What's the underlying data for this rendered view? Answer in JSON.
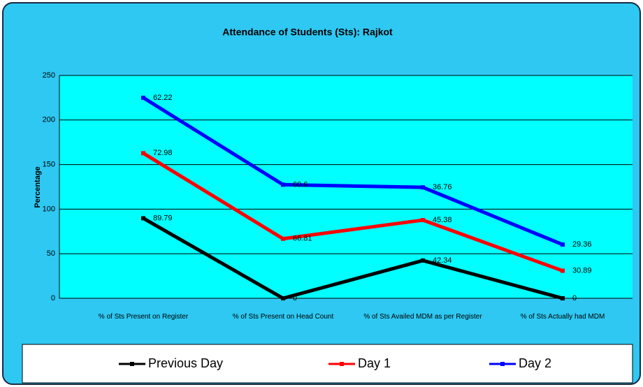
{
  "chart_data": {
    "type": "line",
    "stacked": true,
    "title": "Attendance of Students (Sts): Rajkot",
    "y_label": "Percentage",
    "categories": [
      "% of Sts Present on Register",
      "% of Sts Present on Head Count",
      "% of Sts Availed MDM as per Register",
      "% of Sts Actually had MDM"
    ],
    "series": [
      {
        "name": "Previous Day",
        "color": "#000000",
        "values": [
          89.79,
          0,
          42.34,
          0
        ]
      },
      {
        "name": "Day 1",
        "color": "#ff0000",
        "values": [
          72.98,
          66.81,
          45.38,
          30.89
        ]
      },
      {
        "name": "Day 2",
        "color": "#0000ff",
        "values": [
          62.22,
          60.6,
          36.76,
          29.36
        ]
      }
    ],
    "ylim": [
      0,
      250
    ],
    "yticks": [
      0,
      50,
      100,
      150,
      200,
      250
    ],
    "grid": true,
    "legend": "bottom"
  }
}
